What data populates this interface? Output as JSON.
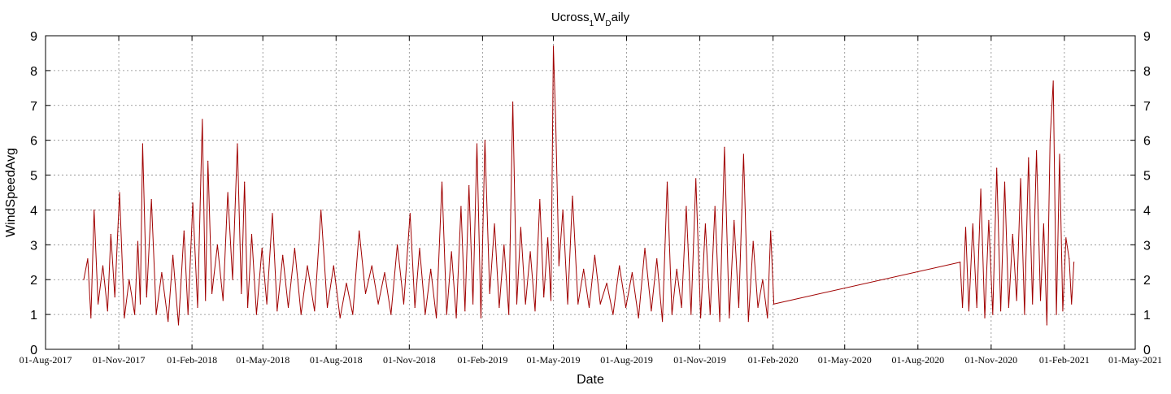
{
  "chart_data": {
    "type": "line",
    "title": "Ucross",
    "title_sub1": "1",
    "title_mid": "W",
    "title_sub2": "D",
    "title_end": "aily",
    "xlabel": "Date",
    "ylabel": "WindSpeedAvg",
    "ylim": [
      0,
      9
    ],
    "yticks": [
      0,
      1,
      2,
      3,
      4,
      5,
      6,
      7,
      8,
      9
    ],
    "xlim": [
      "2017-08-01",
      "2021-05-01"
    ],
    "xticks": [
      "2017-08-01",
      "2017-11-01",
      "2018-02-01",
      "2018-05-01",
      "2018-08-01",
      "2018-11-01",
      "2019-02-01",
      "2019-05-01",
      "2019-08-01",
      "2019-11-01",
      "2020-02-01",
      "2020-05-01",
      "2020-08-01",
      "2020-11-01",
      "2021-02-01",
      "2021-05-01"
    ],
    "xtick_labels": [
      "01-Aug-2017",
      "01-Nov-2017",
      "01-Feb-2018",
      "01-May-2018",
      "01-Aug-2018",
      "01-Nov-2018",
      "01-Feb-2019",
      "01-May-2019",
      "01-Aug-2019",
      "01-Nov-2019",
      "01-Feb-2020",
      "01-May-2020",
      "01-Aug-2020",
      "01-Nov-2020",
      "01-Feb-2021",
      "01-May-2021"
    ],
    "grid": true,
    "right_axis_mirrored": true,
    "series_color": "#a00000",
    "series": [
      {
        "x": [
          "2017-09-18",
          "2017-09-23",
          "2017-09-27",
          "2017-10-01",
          "2017-10-06",
          "2017-10-12",
          "2017-10-18",
          "2017-10-22",
          "2017-10-27",
          "2017-11-02",
          "2017-11-08",
          "2017-11-14",
          "2017-11-21",
          "2017-11-25",
          "2017-11-28",
          "2017-12-01",
          "2017-12-06",
          "2017-12-12",
          "2017-12-18",
          "2017-12-25",
          "2018-01-02",
          "2018-01-08",
          "2018-01-15",
          "2018-01-22",
          "2018-01-27",
          "2018-02-02",
          "2018-02-08",
          "2018-02-14",
          "2018-02-18",
          "2018-02-21",
          "2018-02-26",
          "2018-03-05",
          "2018-03-12",
          "2018-03-18",
          "2018-03-24",
          "2018-03-30",
          "2018-04-04",
          "2018-04-08",
          "2018-04-12",
          "2018-04-17",
          "2018-04-23",
          "2018-04-30",
          "2018-05-06",
          "2018-05-13",
          "2018-05-19",
          "2018-05-26",
          "2018-06-02",
          "2018-06-10",
          "2018-06-18",
          "2018-06-26",
          "2018-07-05",
          "2018-07-13",
          "2018-07-21",
          "2018-07-29",
          "2018-08-06",
          "2018-08-14",
          "2018-08-22",
          "2018-08-30",
          "2018-09-07",
          "2018-09-15",
          "2018-09-23",
          "2018-10-01",
          "2018-10-09",
          "2018-10-17",
          "2018-10-25",
          "2018-11-02",
          "2018-11-08",
          "2018-11-14",
          "2018-11-21",
          "2018-11-28",
          "2018-12-05",
          "2018-12-12",
          "2018-12-18",
          "2018-12-24",
          "2018-12-30",
          "2019-01-05",
          "2019-01-10",
          "2019-01-15",
          "2019-01-20",
          "2019-01-25",
          "2019-01-30",
          "2019-02-04",
          "2019-02-10",
          "2019-02-16",
          "2019-02-22",
          "2019-02-28",
          "2019-03-06",
          "2019-03-11",
          "2019-03-16",
          "2019-03-21",
          "2019-03-27",
          "2019-04-02",
          "2019-04-08",
          "2019-04-14",
          "2019-04-19",
          "2019-04-24",
          "2019-04-28",
          "2019-05-01",
          "2019-05-04",
          "2019-05-08",
          "2019-05-13",
          "2019-05-19",
          "2019-05-25",
          "2019-06-01",
          "2019-06-08",
          "2019-06-15",
          "2019-06-22",
          "2019-06-29",
          "2019-07-07",
          "2019-07-15",
          "2019-07-23",
          "2019-07-31",
          "2019-08-08",
          "2019-08-16",
          "2019-08-24",
          "2019-09-01",
          "2019-09-08",
          "2019-09-15",
          "2019-09-21",
          "2019-09-27",
          "2019-10-03",
          "2019-10-09",
          "2019-10-15",
          "2019-10-21",
          "2019-10-27",
          "2019-11-02",
          "2019-11-08",
          "2019-11-14",
          "2019-11-20",
          "2019-11-26",
          "2019-12-02",
          "2019-12-08",
          "2019-12-14",
          "2019-12-20",
          "2019-12-26",
          "2020-01-01",
          "2020-01-07",
          "2020-01-13",
          "2020-01-19",
          "2020-01-25",
          "2020-01-29",
          "2020-02-02",
          "2020-09-23",
          "2020-09-26",
          "2020-09-30",
          "2020-10-04",
          "2020-10-09",
          "2020-10-14",
          "2020-10-19",
          "2020-10-24",
          "2020-10-29",
          "2020-11-03",
          "2020-11-08",
          "2020-11-13",
          "2020-11-18",
          "2020-11-23",
          "2020-11-28",
          "2020-12-03",
          "2020-12-08",
          "2020-12-13",
          "2020-12-18",
          "2020-12-23",
          "2020-12-28",
          "2021-01-02",
          "2021-01-06",
          "2021-01-10",
          "2021-01-14",
          "2021-01-18",
          "2021-01-22",
          "2021-01-26",
          "2021-01-30",
          "2021-02-03",
          "2021-02-07",
          "2021-02-10",
          "2021-02-13"
        ],
        "y": [
          2.0,
          2.6,
          0.9,
          4.0,
          1.3,
          2.4,
          1.1,
          3.3,
          1.5,
          4.5,
          0.9,
          2.0,
          1.0,
          3.1,
          1.3,
          5.9,
          1.5,
          4.3,
          1.0,
          2.2,
          0.8,
          2.7,
          0.7,
          3.4,
          1.0,
          4.2,
          1.2,
          6.6,
          1.4,
          5.4,
          1.6,
          3.0,
          1.4,
          4.5,
          2.0,
          5.9,
          1.6,
          4.8,
          1.2,
          3.3,
          1.0,
          2.9,
          1.3,
          3.9,
          1.1,
          2.7,
          1.2,
          2.9,
          1.0,
          2.4,
          1.1,
          4.0,
          1.2,
          2.4,
          0.9,
          1.9,
          1.0,
          3.4,
          1.6,
          2.4,
          1.3,
          2.2,
          1.0,
          3.0,
          1.3,
          3.9,
          1.2,
          2.9,
          1.0,
          2.3,
          0.9,
          4.8,
          1.0,
          2.8,
          0.9,
          4.1,
          1.1,
          4.7,
          1.3,
          5.9,
          0.9,
          6.0,
          1.6,
          3.6,
          1.2,
          3.0,
          1.0,
          7.1,
          1.3,
          3.5,
          1.3,
          2.8,
          1.1,
          4.3,
          1.5,
          3.2,
          1.4,
          8.7,
          6.5,
          2.4,
          4.0,
          1.3,
          4.4,
          1.3,
          2.3,
          1.2,
          2.7,
          1.3,
          1.9,
          1.0,
          2.4,
          1.2,
          2.2,
          0.9,
          2.9,
          1.1,
          2.6,
          0.8,
          4.8,
          1.0,
          2.3,
          1.2,
          4.1,
          1.0,
          4.9,
          0.9,
          3.6,
          1.0,
          4.1,
          0.8,
          5.8,
          0.9,
          3.7,
          1.2,
          5.6,
          0.8,
          3.1,
          1.2,
          2.0,
          0.9,
          3.4,
          1.3,
          2.5,
          1.2,
          3.5,
          1.1,
          3.6,
          1.2,
          4.6,
          0.9,
          3.7,
          1.0,
          5.2,
          1.1,
          4.8,
          1.2,
          3.3,
          1.4,
          4.9,
          1.0,
          5.5,
          1.3,
          5.7,
          1.4,
          3.6,
          0.7,
          6.0,
          7.7,
          1.0,
          5.6,
          1.1,
          3.2,
          2.6,
          1.3,
          2.5
        ]
      }
    ]
  }
}
